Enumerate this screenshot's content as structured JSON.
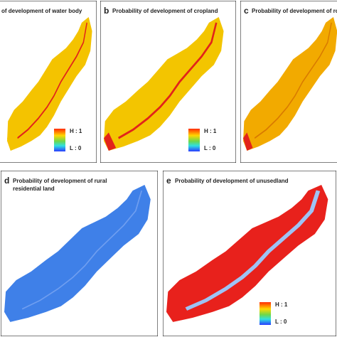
{
  "panels": [
    {
      "title_lines": [
        "of development of water body"
      ],
      "legend": [
        "H : 1",
        "L : 0"
      ]
    },
    {
      "label": "b",
      "title_lines": [
        "Probability of development of cropland"
      ],
      "legend": [
        "H : 1",
        "L : 0"
      ]
    },
    {
      "label": "c",
      "title_lines": [
        "Probability of development of road"
      ]
    },
    {
      "label": "d",
      "title_lines": [
        "Probability of development of rural",
        "residential land"
      ]
    },
    {
      "label": "e",
      "title_lines": [
        "Probability of development of unusedland"
      ],
      "legend": [
        "H : 1",
        "L : 0"
      ]
    }
  ]
}
